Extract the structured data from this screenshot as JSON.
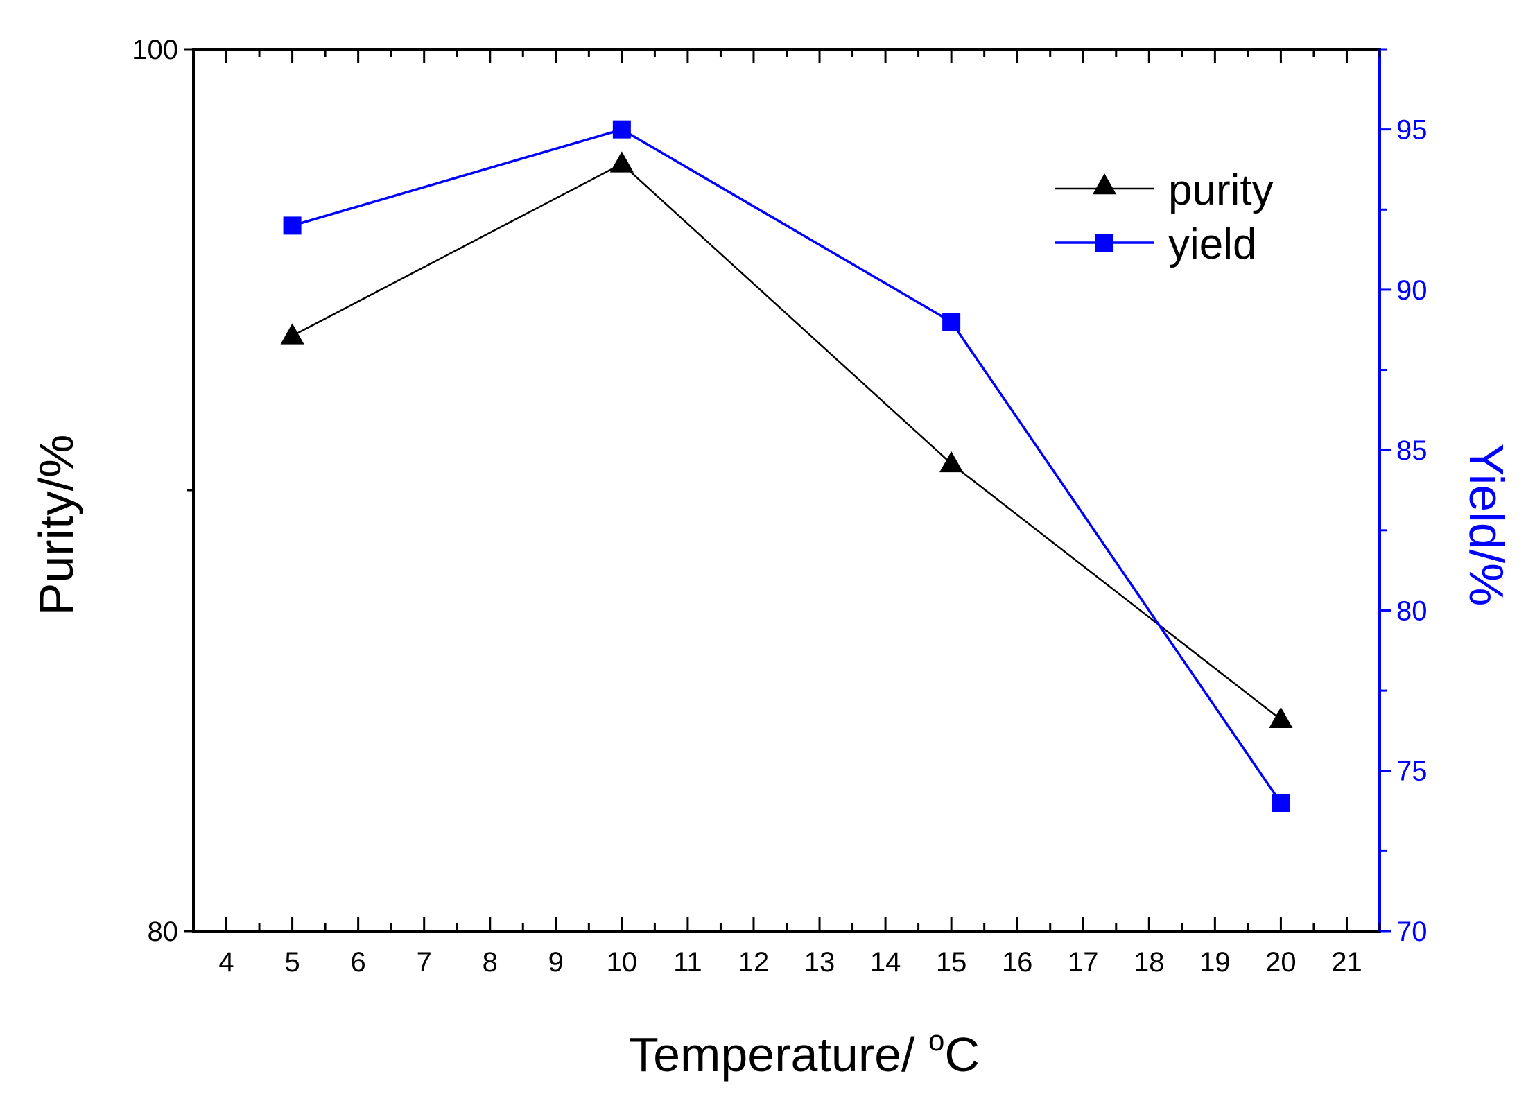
{
  "chart_data": {
    "type": "line",
    "title": "",
    "xlabel": "Temperature/ ",
    "xlabel_unit": "C",
    "xlabel_superscript": "o",
    "ylabel_left": "Purity/%",
    "ylabel_right": "Yield/%",
    "x_ticks": [
      4,
      5,
      6,
      7,
      8,
      9,
      10,
      11,
      12,
      13,
      14,
      15,
      16,
      17,
      18,
      19,
      20,
      21
    ],
    "xlim": [
      3.5,
      21.5
    ],
    "ylim_left": [
      80,
      100
    ],
    "y_left_ticks": [
      80,
      100
    ],
    "ylim_right": [
      70,
      97.5
    ],
    "y_right_ticks": [
      70,
      75,
      80,
      85,
      90,
      95
    ],
    "grid": false,
    "legend_position": "top-right",
    "series": [
      {
        "name": "purity",
        "axis": "left",
        "marker": "triangle",
        "color": "#000000",
        "x": [
          5,
          10,
          15,
          20
        ],
        "values": [
          93.5,
          97.4,
          90.6,
          84.8
        ]
      },
      {
        "name": "yield",
        "axis": "right",
        "marker": "square",
        "color": "#0000ff",
        "x": [
          5,
          10,
          15,
          20
        ],
        "values": [
          92,
          95,
          89,
          74
        ]
      }
    ]
  }
}
